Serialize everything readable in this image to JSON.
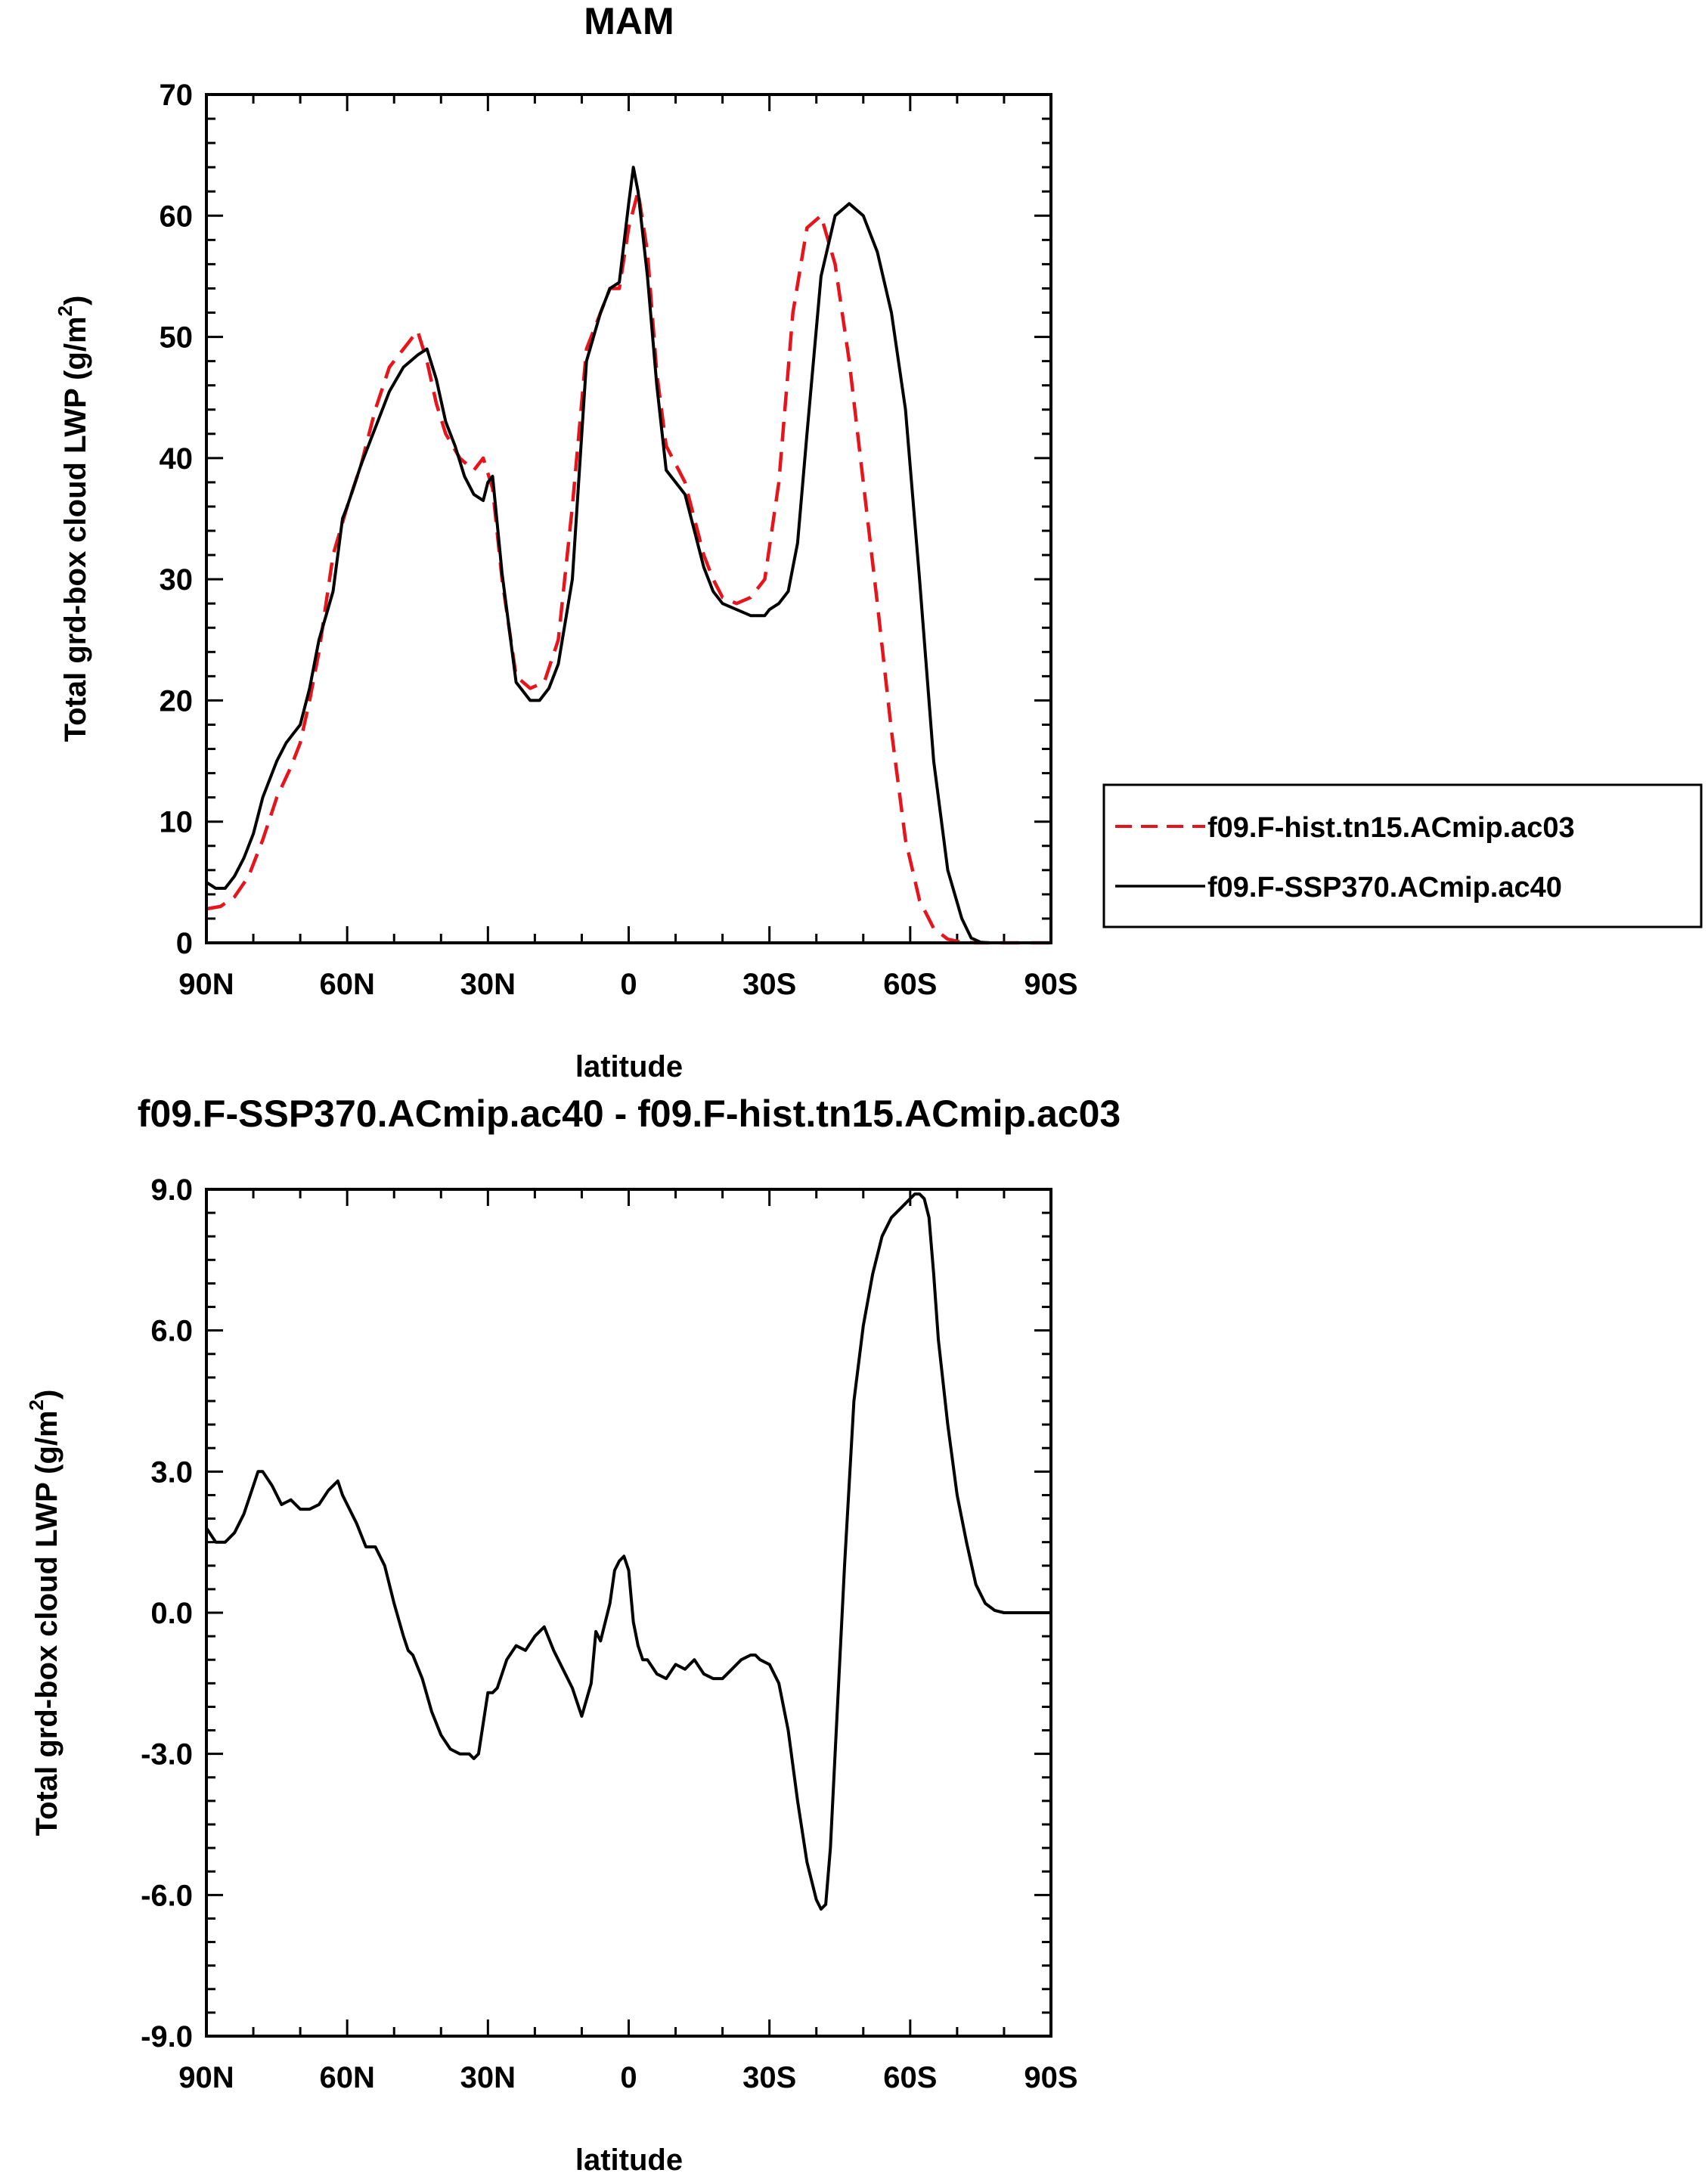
{
  "chart_data": [
    {
      "type": "line",
      "title": "MAM",
      "xlabel": "latitude",
      "ylabel": "Total grd-box cloud LWP (g/m²)",
      "ylabel_main": "Total grd-box cloud LWP (g/m",
      "ylabel_sup": "2",
      "ylabel_close": ")",
      "xlim": [
        90,
        -90
      ],
      "ylim": [
        0,
        70
      ],
      "x_tick_values": [
        90,
        60,
        30,
        0,
        -30,
        -60,
        -90
      ],
      "x_tick_labels": [
        "90N",
        "60N",
        "30N",
        "0",
        "30S",
        "60S",
        "90S"
      ],
      "y_tick_values": [
        0,
        10,
        20,
        30,
        40,
        50,
        60,
        70
      ],
      "y_tick_labels": [
        "0",
        "10",
        "20",
        "30",
        "40",
        "50",
        "60",
        "70"
      ],
      "legend_position": "right",
      "series": [
        {
          "name": "f09.F-hist.tn15.ACmip.ac03",
          "color": "#e8141c",
          "dash": "dashed",
          "x": [
            90,
            87,
            84,
            81,
            78,
            75,
            72,
            70,
            68,
            66,
            63,
            60,
            57,
            54,
            51,
            48,
            45,
            43,
            41,
            39,
            36,
            33,
            31,
            29,
            27,
            24,
            21,
            18,
            15,
            12,
            9,
            6,
            4,
            2,
            0,
            -2,
            -4,
            -6,
            -8,
            -10,
            -12,
            -14,
            -16,
            -18,
            -20,
            -23,
            -26,
            -29,
            -32,
            -35,
            -38,
            -41,
            -44,
            -47,
            -50,
            -53,
            -56,
            -59,
            -62,
            -65,
            -68,
            -71,
            -74,
            -77,
            -80,
            -84,
            -90
          ],
          "y": [
            2.8,
            3.0,
            3.8,
            5.5,
            8.5,
            12.0,
            14.5,
            16.5,
            20.0,
            24.0,
            32.0,
            36.0,
            39.5,
            44.0,
            47.5,
            49.0,
            50.5,
            48.0,
            44.5,
            42.0,
            40.0,
            39.0,
            40.0,
            37.5,
            30.0,
            22.0,
            21.0,
            21.5,
            25.0,
            36.0,
            49.0,
            52.0,
            54.0,
            54.0,
            59.0,
            62.0,
            57.0,
            47.0,
            41.0,
            39.5,
            38.0,
            35.0,
            32.0,
            30.0,
            28.5,
            28.0,
            28.5,
            30.0,
            38.0,
            52.0,
            59.0,
            60.0,
            56.0,
            48.0,
            38.0,
            28.0,
            17.5,
            8.5,
            3.5,
            1.2,
            0.3,
            0.05,
            0.0,
            0.0,
            0.0,
            0.0,
            0.0
          ]
        },
        {
          "name": "f09.F-SSP370.ACmip.ac40",
          "color": "#000000",
          "dash": "solid",
          "x": [
            90,
            88,
            86,
            84,
            82,
            80,
            78,
            75,
            73,
            70,
            68,
            66,
            63,
            61,
            60,
            57,
            54,
            51,
            48,
            45,
            43,
            41,
            39,
            37,
            35,
            33,
            31,
            30,
            29,
            27,
            24,
            21,
            19,
            18,
            17,
            15,
            12,
            9,
            6,
            4,
            2,
            0,
            -1,
            -2,
            -4,
            -6,
            -8,
            -10,
            -12,
            -14,
            -16,
            -18,
            -20,
            -23,
            -26,
            -29,
            -30,
            -32,
            -34,
            -36,
            -38,
            -41,
            -44,
            -47,
            -50,
            -53,
            -56,
            -59,
            -62,
            -65,
            -68,
            -71,
            -73,
            -75,
            -77,
            -80,
            -84,
            -90
          ],
          "y": [
            5.0,
            4.5,
            4.5,
            5.5,
            7.0,
            9.0,
            12.0,
            15.0,
            16.5,
            18.0,
            21.0,
            25.0,
            29.0,
            35.0,
            36.0,
            39.5,
            42.5,
            45.5,
            47.5,
            48.5,
            49.0,
            46.5,
            43.0,
            41.0,
            38.5,
            37.0,
            36.5,
            38.0,
            38.5,
            30.5,
            21.5,
            20.0,
            20.0,
            20.5,
            21.0,
            23.0,
            30.0,
            48.0,
            52.0,
            54.0,
            54.5,
            61.0,
            64.0,
            62.0,
            55.0,
            46.0,
            39.0,
            38.0,
            37.0,
            34.0,
            31.0,
            29.0,
            28.0,
            27.5,
            27.0,
            27.0,
            27.5,
            28.0,
            29.0,
            33.0,
            42.0,
            55.0,
            60.0,
            61.0,
            60.0,
            57.0,
            52.0,
            44.0,
            30.0,
            15.0,
            6.0,
            2.0,
            0.4,
            0.05,
            0.0,
            0.0,
            0.0,
            0.0
          ]
        }
      ]
    },
    {
      "type": "line",
      "title": "f09.F-SSP370.ACmip.ac40 - f09.F-hist.tn15.ACmip.ac03",
      "xlabel": "latitude",
      "ylabel": "Total grd-box cloud LWP (g/m²)",
      "ylabel_main": "Total grd-box cloud LWP (g/m",
      "ylabel_sup": "2",
      "ylabel_close": ")",
      "xlim": [
        90,
        -90
      ],
      "ylim": [
        -9,
        9
      ],
      "x_tick_values": [
        90,
        60,
        30,
        0,
        -30,
        -60,
        -90
      ],
      "x_tick_labels": [
        "90N",
        "60N",
        "30N",
        "0",
        "30S",
        "60S",
        "90S"
      ],
      "y_tick_values": [
        -9,
        -6,
        -3,
        0,
        3,
        6,
        9
      ],
      "y_tick_labels": [
        "-9.0",
        "-6.0",
        "-3.0",
        "0.0",
        "3.0",
        "6.0",
        "9.0"
      ],
      "series": [
        {
          "color": "#000000",
          "dash": "solid",
          "x": [
            90,
            88,
            86,
            84,
            82,
            80,
            79,
            78,
            76,
            74,
            72,
            70,
            68,
            66,
            64,
            62,
            61,
            60,
            58,
            56,
            54,
            52,
            50,
            48,
            47,
            46,
            44,
            42,
            40,
            38,
            36,
            34,
            33,
            32,
            30,
            29,
            28,
            26,
            24,
            22,
            20,
            18,
            16,
            14,
            12,
            10,
            8,
            7,
            6,
            4,
            3,
            2,
            1,
            0,
            -1,
            -2,
            -3,
            -4,
            -6,
            -8,
            -10,
            -12,
            -14,
            -16,
            -18,
            -20,
            -22,
            -24,
            -26,
            -27,
            -28,
            -30,
            -32,
            -34,
            -36,
            -38,
            -40,
            -41,
            -42,
            -43,
            -44,
            -46,
            -48,
            -50,
            -52,
            -54,
            -56,
            -58,
            -60,
            -61,
            -62,
            -63,
            -64,
            -65,
            -66,
            -68,
            -70,
            -72,
            -74,
            -76,
            -78,
            -80,
            -84,
            -90
          ],
          "y": [
            1.8,
            1.5,
            1.5,
            1.7,
            2.1,
            2.7,
            3.0,
            3.0,
            2.7,
            2.3,
            2.4,
            2.2,
            2.2,
            2.3,
            2.6,
            2.8,
            2.5,
            2.3,
            1.9,
            1.4,
            1.4,
            1.0,
            0.2,
            -0.5,
            -0.8,
            -0.9,
            -1.4,
            -2.1,
            -2.6,
            -2.9,
            -3.0,
            -3.0,
            -3.1,
            -3.0,
            -1.7,
            -1.7,
            -1.6,
            -1.0,
            -0.7,
            -0.8,
            -0.5,
            -0.3,
            -0.8,
            -1.2,
            -1.6,
            -2.2,
            -1.5,
            -0.4,
            -0.6,
            0.2,
            0.9,
            1.1,
            1.2,
            0.9,
            -0.2,
            -0.7,
            -1.0,
            -1.0,
            -1.3,
            -1.4,
            -1.1,
            -1.2,
            -1.0,
            -1.3,
            -1.4,
            -1.4,
            -1.2,
            -1.0,
            -0.9,
            -0.9,
            -1.0,
            -1.1,
            -1.5,
            -2.5,
            -4.0,
            -5.3,
            -6.1,
            -6.3,
            -6.2,
            -5.0,
            -3.0,
            1.0,
            4.5,
            6.1,
            7.2,
            8.0,
            8.4,
            8.6,
            8.8,
            8.9,
            8.9,
            8.8,
            8.4,
            7.2,
            5.8,
            4.0,
            2.5,
            1.5,
            0.6,
            0.2,
            0.05,
            0.0,
            0.0,
            0.0
          ]
        }
      ]
    }
  ]
}
